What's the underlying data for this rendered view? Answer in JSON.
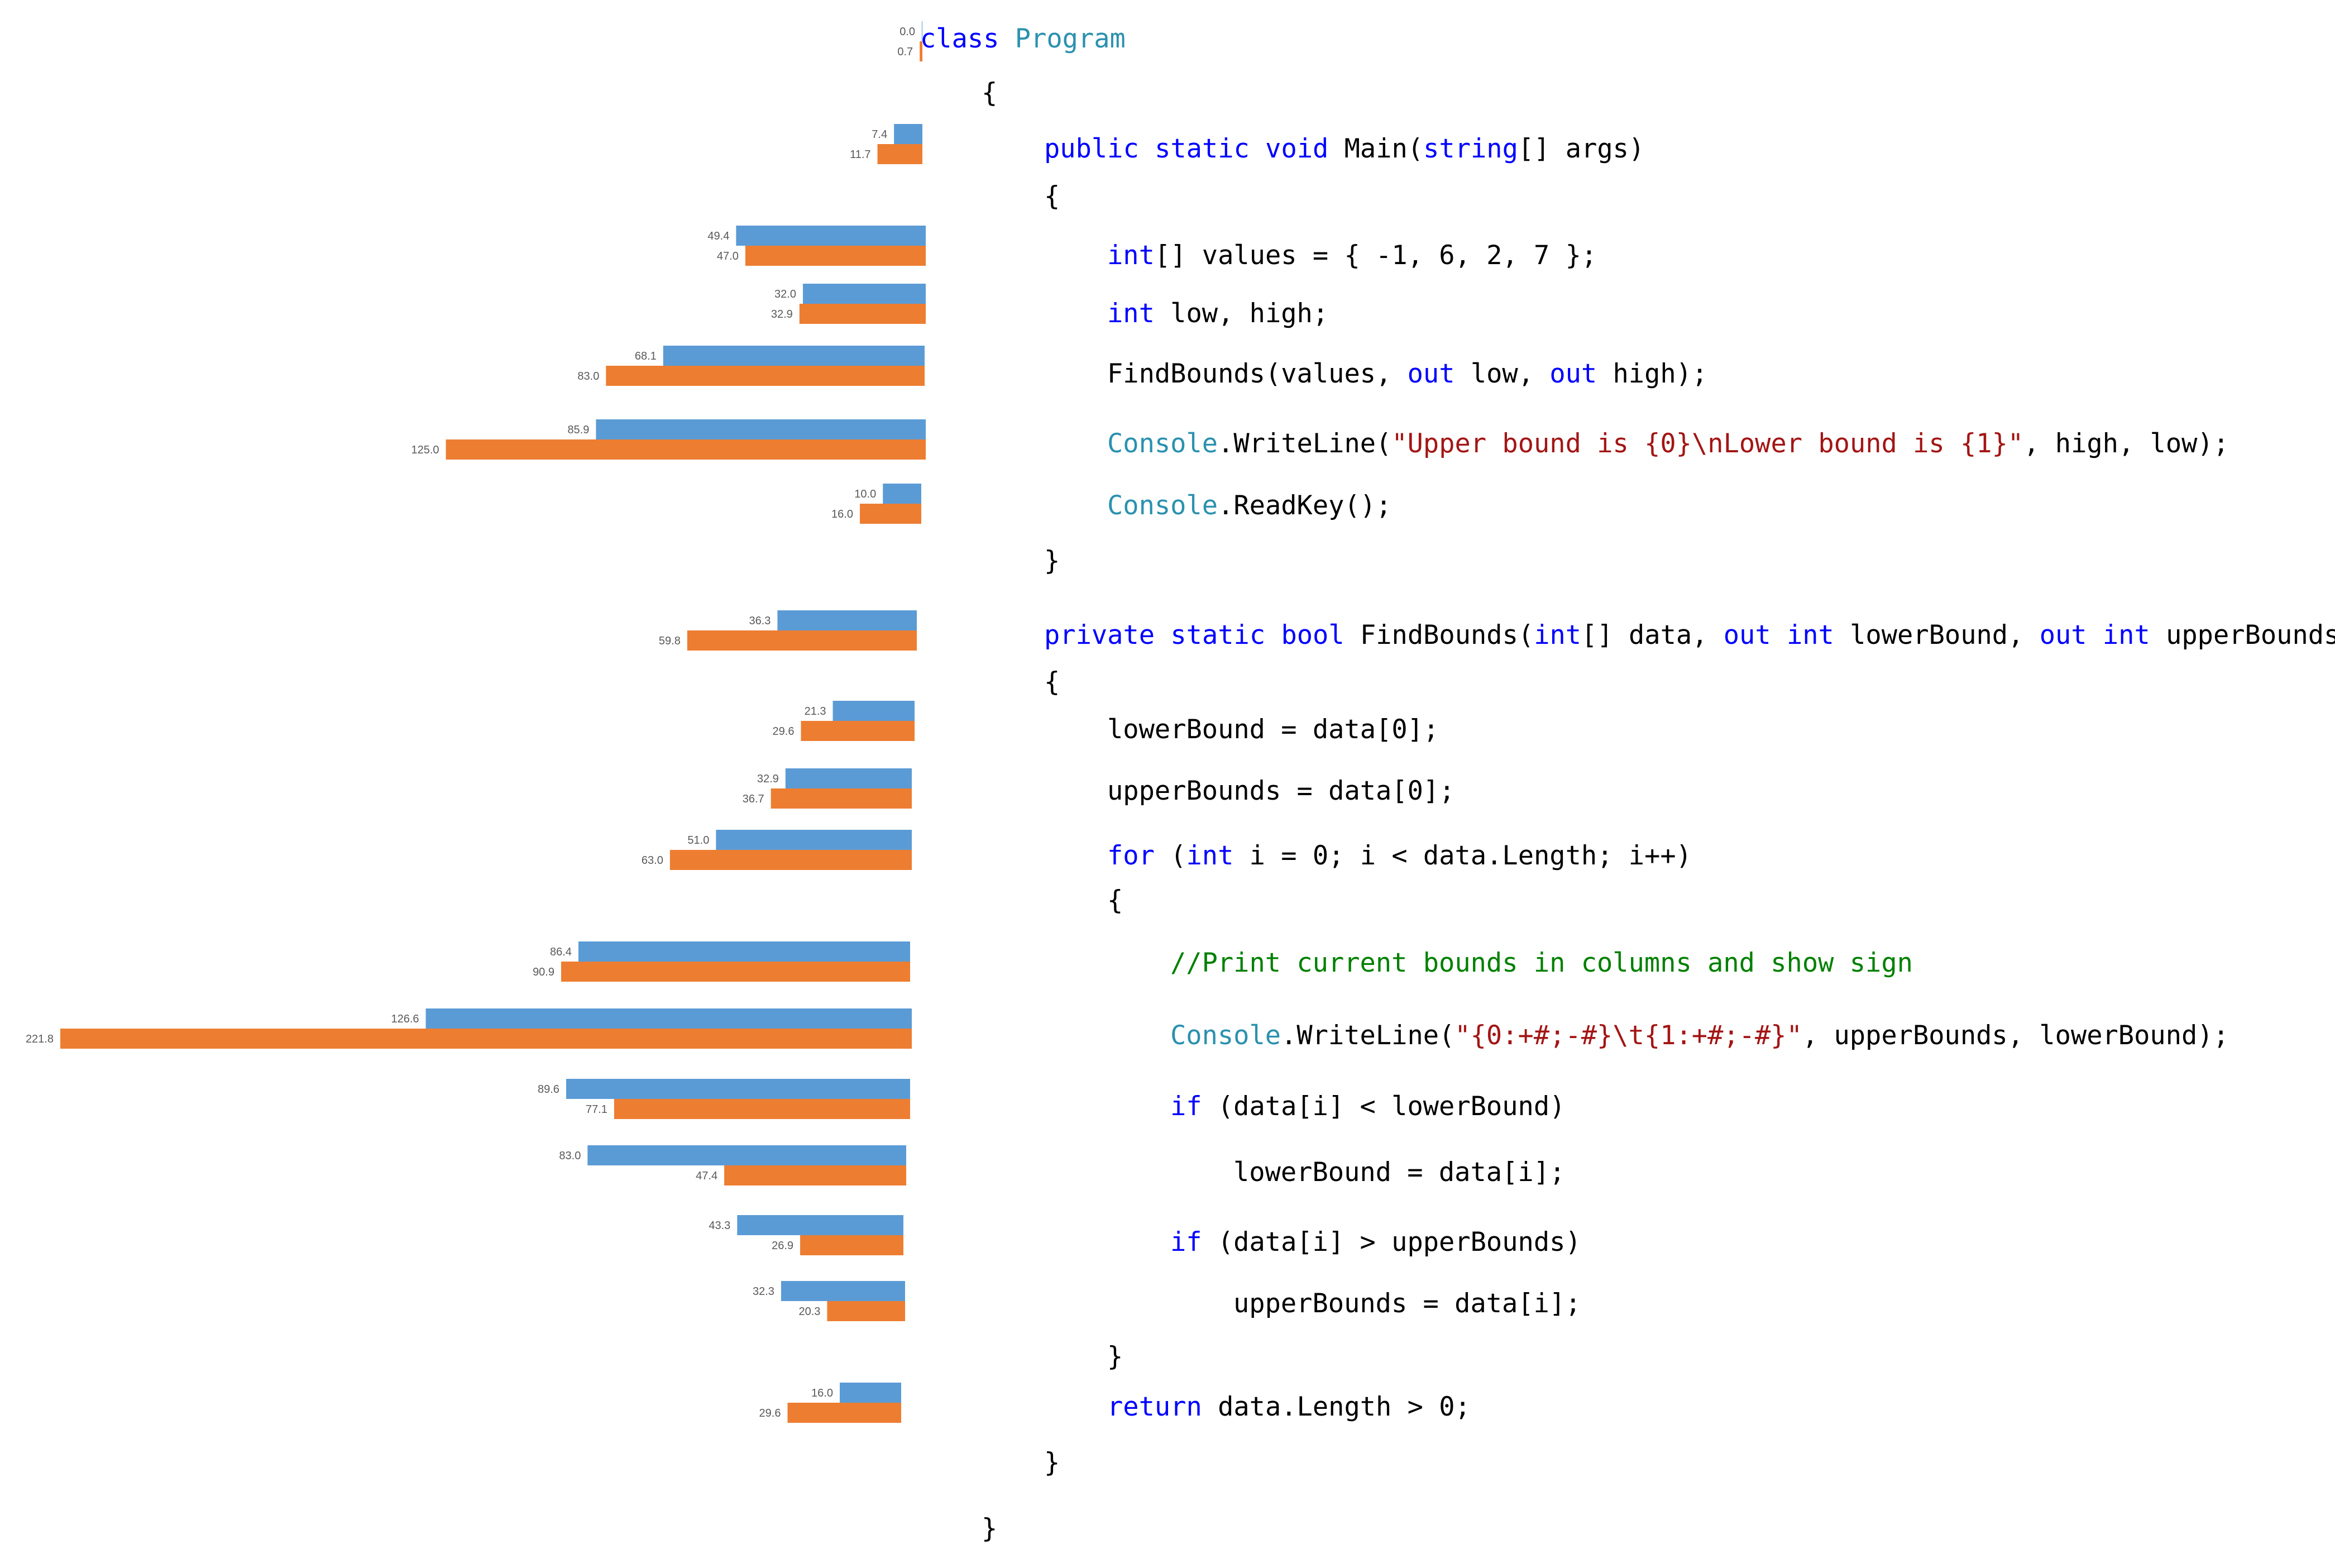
{
  "chart_data": {
    "type": "bar",
    "orientation": "horizontal",
    "direction": "leftward",
    "grid": false,
    "legend": "none",
    "title": "",
    "xlabel": "",
    "ylabel": "",
    "xlim": [
      0,
      221.8
    ],
    "colors": {
      "series_1": "#5b9bd5",
      "series_2": "#ed7d31"
    },
    "series": [
      {
        "values": [
          0.0,
          7.4,
          49.4,
          32.0,
          68.1,
          85.9,
          10.0,
          36.3,
          21.3,
          32.9,
          51.0,
          86.4,
          126.6,
          89.6,
          83.0,
          43.3,
          32.3,
          16.0
        ]
      },
      {
        "values": [
          0.7,
          11.7,
          47.0,
          32.9,
          83.0,
          125.0,
          16.0,
          59.8,
          29.6,
          36.7,
          63.0,
          90.9,
          221.8,
          77.1,
          47.4,
          26.9,
          20.3,
          29.6
        ]
      }
    ],
    "labels_series_1": [
      "0.0",
      "7.4",
      "49.4",
      "32.0",
      "68.1",
      "85.9",
      "10.0",
      "36.3",
      "21.3",
      "32.9",
      "51.0",
      "86.4",
      "126.6",
      "89.6",
      "83.0",
      "43.3",
      "32.3",
      "16.0"
    ],
    "labels_series_2": [
      "0.7",
      "11.7",
      "47.0",
      "32.9",
      "83.0",
      "125.0",
      "16.0",
      "59.8",
      "29.6",
      "36.7",
      "63.0",
      "90.9",
      "221.8",
      "77.1",
      "47.4",
      "26.9",
      "20.3",
      "29.6"
    ]
  },
  "code": {
    "colors": {
      "plain": "#000000",
      "keyword": "#0000ff",
      "type": "#2b91af",
      "string": "#a31515",
      "comment": "#008000"
    },
    "lines": [
      {
        "indent": 0,
        "tokens": [
          {
            "t": "class ",
            "c": "keyword"
          },
          {
            "t": "Program",
            "c": "type"
          }
        ]
      },
      {
        "indent": 1,
        "tokens": [
          {
            "t": "{",
            "c": "plain"
          }
        ]
      },
      {
        "indent": 2,
        "tokens": [
          {
            "t": "public static void ",
            "c": "keyword"
          },
          {
            "t": "Main(",
            "c": "plain"
          },
          {
            "t": "string",
            "c": "keyword"
          },
          {
            "t": "[] args)",
            "c": "plain"
          }
        ]
      },
      {
        "indent": 2,
        "tokens": [
          {
            "t": "{",
            "c": "plain"
          }
        ]
      },
      {
        "indent": 3,
        "tokens": [
          {
            "t": "int",
            "c": "keyword"
          },
          {
            "t": "[] values = { -1, 6, 2, 7 };",
            "c": "plain"
          }
        ]
      },
      {
        "indent": 3,
        "tokens": [
          {
            "t": "int",
            "c": "keyword"
          },
          {
            "t": " low, high;",
            "c": "plain"
          }
        ]
      },
      {
        "indent": 3,
        "tokens": [
          {
            "t": "FindBounds(values, ",
            "c": "plain"
          },
          {
            "t": "out",
            "c": "keyword"
          },
          {
            "t": " low, ",
            "c": "plain"
          },
          {
            "t": "out",
            "c": "keyword"
          },
          {
            "t": " high);",
            "c": "plain"
          }
        ]
      },
      {
        "indent": 3,
        "tokens": [
          {
            "t": "Console",
            "c": "type"
          },
          {
            "t": ".WriteLine(",
            "c": "plain"
          },
          {
            "t": "\"Upper bound is {0}\\nLower bound is {1}\"",
            "c": "string"
          },
          {
            "t": ", high, low);",
            "c": "plain"
          }
        ]
      },
      {
        "indent": 3,
        "tokens": [
          {
            "t": "Console",
            "c": "type"
          },
          {
            "t": ".ReadKey();",
            "c": "plain"
          }
        ]
      },
      {
        "indent": 2,
        "tokens": [
          {
            "t": "}",
            "c": "plain"
          }
        ]
      },
      {
        "indent": 2,
        "tokens": [
          {
            "t": "private static bool ",
            "c": "keyword"
          },
          {
            "t": "FindBounds(",
            "c": "plain"
          },
          {
            "t": "int",
            "c": "keyword"
          },
          {
            "t": "[] data, ",
            "c": "plain"
          },
          {
            "t": "out int",
            "c": "keyword"
          },
          {
            "t": " lowerBound, ",
            "c": "plain"
          },
          {
            "t": "out int",
            "c": "keyword"
          },
          {
            "t": " upperBounds)",
            "c": "plain"
          }
        ]
      },
      {
        "indent": 2,
        "tokens": [
          {
            "t": "{",
            "c": "plain"
          }
        ]
      },
      {
        "indent": 3,
        "tokens": [
          {
            "t": "lowerBound = data[0];",
            "c": "plain"
          }
        ]
      },
      {
        "indent": 3,
        "tokens": [
          {
            "t": "upperBounds = data[0];",
            "c": "plain"
          }
        ]
      },
      {
        "indent": 3,
        "tokens": [
          {
            "t": "for",
            "c": "keyword"
          },
          {
            "t": " (",
            "c": "plain"
          },
          {
            "t": "int",
            "c": "keyword"
          },
          {
            "t": " i = 0; i < data.Length; i++)",
            "c": "plain"
          }
        ]
      },
      {
        "indent": 3,
        "tokens": [
          {
            "t": "{",
            "c": "plain"
          }
        ]
      },
      {
        "indent": 4,
        "tokens": [
          {
            "t": "//Print current bounds in columns and show sign",
            "c": "comment"
          }
        ]
      },
      {
        "indent": 4,
        "tokens": [
          {
            "t": "Console",
            "c": "type"
          },
          {
            "t": ".WriteLine(",
            "c": "plain"
          },
          {
            "t": "\"{0:+#;-#}\\t{1:+#;-#}\"",
            "c": "string"
          },
          {
            "t": ", upperBounds, lowerBound);",
            "c": "plain"
          }
        ]
      },
      {
        "indent": 4,
        "tokens": [
          {
            "t": "if",
            "c": "keyword"
          },
          {
            "t": " (data[i] < lowerBound)",
            "c": "plain"
          }
        ]
      },
      {
        "indent": 5,
        "tokens": [
          {
            "t": "lowerBound = data[i];",
            "c": "plain"
          }
        ]
      },
      {
        "indent": 4,
        "tokens": [
          {
            "t": "if",
            "c": "keyword"
          },
          {
            "t": " (data[i] > upperBounds)",
            "c": "plain"
          }
        ]
      },
      {
        "indent": 5,
        "tokens": [
          {
            "t": "upperBounds = data[i];",
            "c": "plain"
          }
        ]
      },
      {
        "indent": 3,
        "tokens": [
          {
            "t": "}",
            "c": "plain"
          }
        ]
      },
      {
        "indent": 3,
        "tokens": [
          {
            "t": "return",
            "c": "keyword"
          },
          {
            "t": " data.Length > 0;",
            "c": "plain"
          }
        ]
      },
      {
        "indent": 2,
        "tokens": [
          {
            "t": "}",
            "c": "plain"
          }
        ]
      },
      {
        "indent": 1,
        "tokens": [
          {
            "t": "}",
            "c": "plain"
          }
        ]
      }
    ]
  }
}
